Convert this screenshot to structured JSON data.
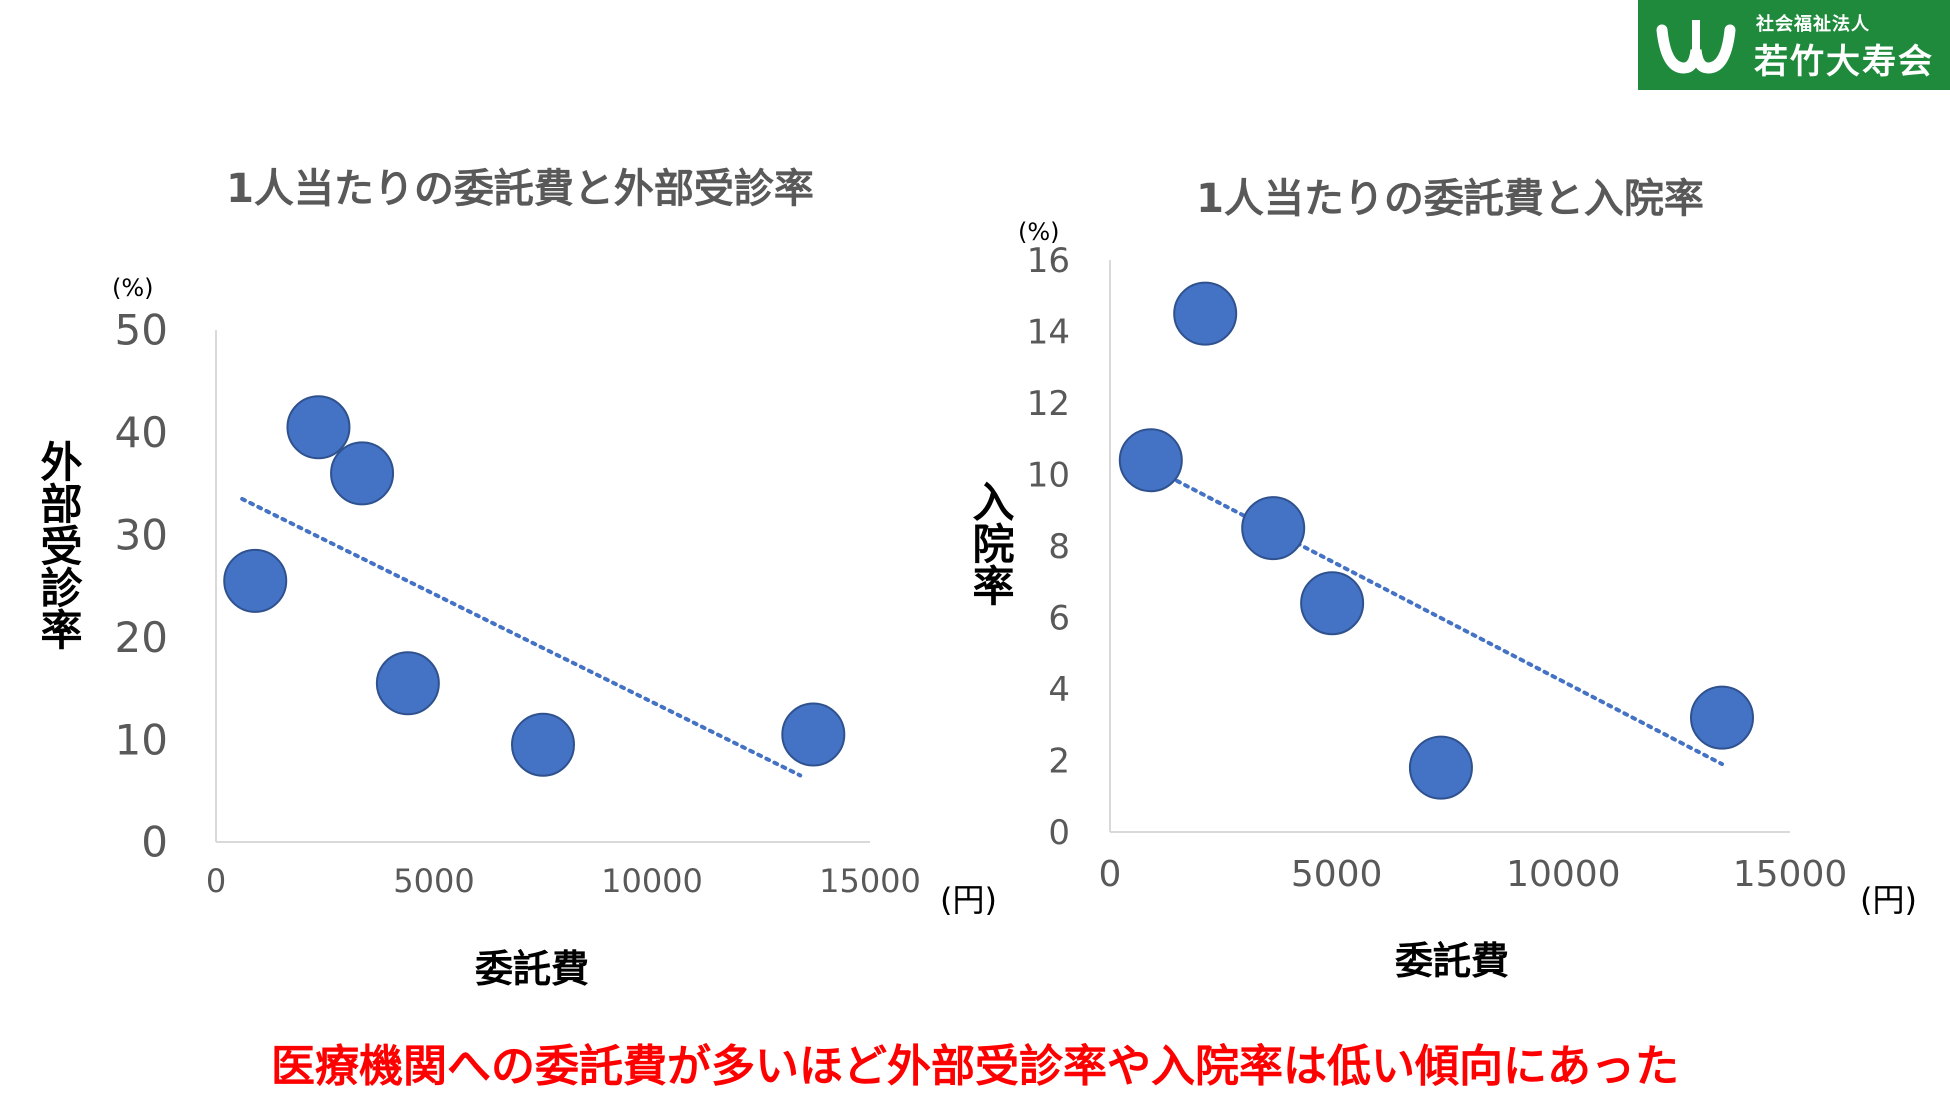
{
  "logo": {
    "org_type": "社会福祉法人",
    "org_name": "若竹大寿会",
    "mark_icon": "w-logo-icon",
    "brand_color": "#1f8a3c"
  },
  "charts": [
    {
      "title": "1人当たりの委託費と外部受診率",
      "ylabel": "外部受診率",
      "xlabel": "委託費",
      "y_unit": "(%)",
      "x_unit": "(円)"
    },
    {
      "title": "1人当たりの委託費と入院率",
      "ylabel": "入院率",
      "xlabel": "委託費",
      "y_unit": "(%)",
      "x_unit": "(円)"
    }
  ],
  "chart_data": [
    {
      "type": "scatter",
      "title": "1人当たりの委託費と外部受診率",
      "xlabel": "委託費",
      "ylabel": "外部受診率",
      "xlim": [
        0,
        15000
      ],
      "ylim": [
        0,
        50
      ],
      "x_ticks": [
        "0",
        "5000",
        "10000",
        "15000"
      ],
      "y_ticks": [
        "0",
        "10",
        "20",
        "30",
        "40",
        "50"
      ],
      "points": [
        {
          "x": 900,
          "y": 25.5
        },
        {
          "x": 2350,
          "y": 40.5
        },
        {
          "x": 3350,
          "y": 36
        },
        {
          "x": 4400,
          "y": 15.5
        },
        {
          "x": 7500,
          "y": 9.5
        },
        {
          "x": 13700,
          "y": 10.5
        }
      ],
      "trendline": {
        "style": "dotted",
        "from": {
          "x": 600,
          "y": 33.5
        },
        "to": {
          "x": 13400,
          "y": 6.5
        }
      },
      "grid": false,
      "marker_color": "#4472c4"
    },
    {
      "type": "scatter",
      "title": "1人当たりの委託費と入院率",
      "xlabel": "委託費",
      "ylabel": "入院率",
      "xlim": [
        0,
        15000
      ],
      "ylim": [
        0,
        16
      ],
      "x_ticks": [
        "0",
        "5000",
        "10000",
        "15000"
      ],
      "y_ticks": [
        "0",
        "2",
        "4",
        "6",
        "8",
        "10",
        "12",
        "14",
        "16"
      ],
      "points": [
        {
          "x": 900,
          "y": 10.4
        },
        {
          "x": 2100,
          "y": 14.5
        },
        {
          "x": 3600,
          "y": 8.5
        },
        {
          "x": 4900,
          "y": 6.4
        },
        {
          "x": 7300,
          "y": 1.8
        },
        {
          "x": 13500,
          "y": 3.2
        }
      ],
      "trendline": {
        "style": "dotted",
        "from": {
          "x": 600,
          "y": 10.4
        },
        "to": {
          "x": 13500,
          "y": 1.9
        }
      },
      "grid": false,
      "marker_color": "#4472c4"
    }
  ],
  "conclusion": "医療機関への委託費が多いほど外部受診率や入院率は低い傾向にあった"
}
